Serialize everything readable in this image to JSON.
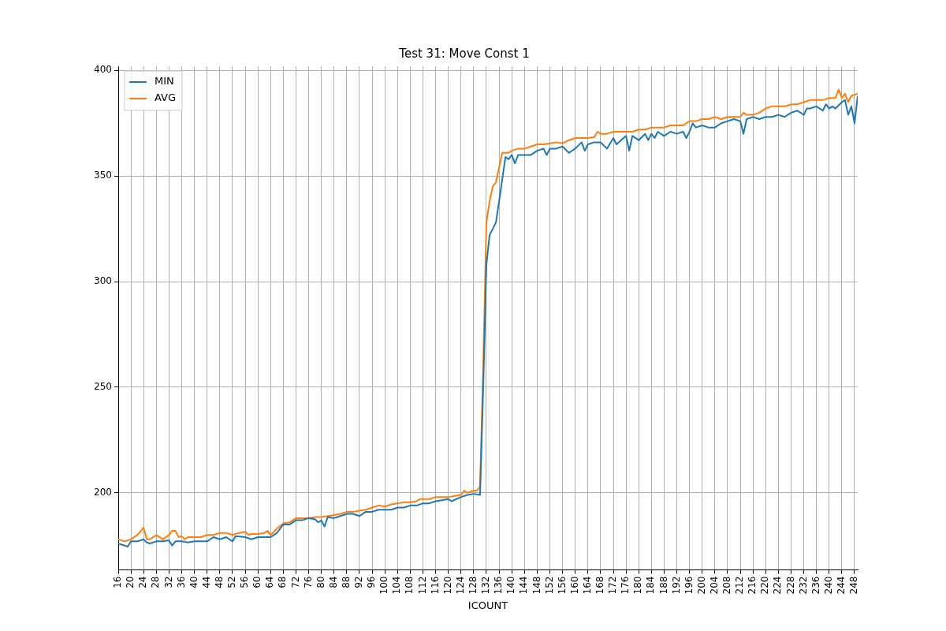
{
  "chart_data": {
    "type": "line",
    "title": "Test 31: Move Const 1",
    "xlabel": "ICOUNT",
    "xlim": [
      16,
      249
    ],
    "ylim": [
      163.5,
      402
    ],
    "xticks": [
      16,
      20,
      24,
      28,
      32,
      36,
      40,
      44,
      48,
      52,
      56,
      60,
      64,
      68,
      72,
      76,
      80,
      84,
      88,
      92,
      96,
      100,
      104,
      108,
      112,
      116,
      120,
      124,
      128,
      132,
      136,
      140,
      144,
      148,
      152,
      156,
      160,
      164,
      168,
      172,
      176,
      180,
      184,
      188,
      192,
      196,
      200,
      204,
      208,
      212,
      216,
      220,
      224,
      228,
      232,
      236,
      240,
      244,
      248
    ],
    "yticks": [
      200,
      250,
      300,
      350,
      400
    ],
    "grid": true,
    "legend": "top left",
    "marker": "none",
    "line_style": "solid",
    "series": [
      {
        "name": "MIN",
        "color": "#1f77b4",
        "x": [
          16,
          18,
          19,
          20,
          22,
          24,
          25,
          26,
          28,
          30,
          32,
          33,
          34,
          36,
          38,
          40,
          42,
          44,
          46,
          48,
          50,
          52,
          53,
          56,
          58,
          60,
          62,
          64,
          66,
          68,
          70,
          72,
          74,
          76,
          78,
          79,
          80,
          81,
          82,
          84,
          86,
          88,
          90,
          92,
          94,
          96,
          98,
          100,
          102,
          104,
          106,
          108,
          110,
          112,
          114,
          116,
          118,
          120,
          121,
          124,
          126,
          128,
          130,
          131,
          132,
          133,
          135,
          136,
          138,
          139,
          140,
          141,
          142,
          144,
          146,
          148,
          150,
          151,
          152,
          154,
          156,
          158,
          160,
          162,
          163,
          164,
          166,
          168,
          170,
          172,
          173,
          176,
          177,
          178,
          180,
          182,
          183,
          184,
          185,
          186,
          188,
          190,
          192,
          194,
          195,
          196,
          197,
          198,
          200,
          202,
          204,
          206,
          208,
          210,
          212,
          213,
          214,
          216,
          218,
          220,
          222,
          224,
          226,
          228,
          230,
          232,
          233,
          234,
          236,
          238,
          239,
          240,
          241,
          242,
          244,
          245,
          246,
          247,
          248,
          249
        ],
        "values": [
          176,
          175,
          174.5,
          177,
          177,
          178,
          176.5,
          176,
          177,
          177,
          177.5,
          175,
          177,
          177,
          176.5,
          177,
          177,
          177,
          179,
          178,
          179,
          177,
          179.5,
          179,
          178,
          179,
          179,
          179,
          181,
          185,
          185,
          187,
          187,
          188,
          187.5,
          186,
          187,
          184,
          188.5,
          188,
          189,
          190,
          190,
          189,
          191,
          191,
          192,
          192,
          192,
          193,
          193,
          194,
          194,
          195,
          195,
          196,
          196.5,
          197,
          196,
          198,
          199,
          199.5,
          199,
          250,
          308,
          322,
          328,
          338,
          359,
          358,
          360,
          356,
          360,
          360,
          360,
          362,
          363,
          360,
          363,
          363,
          364,
          361,
          363,
          366,
          362,
          365,
          366,
          366,
          363,
          368,
          365,
          369,
          362,
          369,
          367,
          370,
          367,
          370,
          368,
          371,
          369,
          371,
          370,
          371,
          368,
          371,
          375,
          373,
          374,
          373,
          373,
          375,
          376,
          377,
          376,
          370,
          377,
          378,
          377,
          378,
          378,
          379,
          378,
          380,
          381,
          379,
          382,
          382,
          383,
          381,
          384,
          382,
          383,
          382,
          385,
          386,
          379,
          383,
          375,
          388
        ]
      },
      {
        "name": "AVG",
        "color": "#ff7f0e",
        "x": [
          16,
          18,
          20,
          22,
          24,
          25,
          26,
          28,
          30,
          32,
          33,
          34,
          35,
          36,
          37,
          38,
          40,
          42,
          44,
          46,
          48,
          50,
          52,
          54,
          56,
          57,
          58,
          60,
          62,
          63,
          64,
          66,
          68,
          70,
          72,
          74,
          76,
          78,
          80,
          82,
          84,
          86,
          88,
          90,
          92,
          94,
          96,
          98,
          100,
          102,
          104,
          106,
          108,
          110,
          111,
          112,
          114,
          116,
          118,
          120,
          122,
          124,
          125,
          126,
          128,
          129,
          130,
          131,
          132,
          133,
          134,
          135,
          136,
          137,
          138,
          139,
          140,
          142,
          144,
          146,
          148,
          150,
          152,
          154,
          156,
          158,
          160,
          162,
          164,
          166,
          167,
          168,
          170,
          172,
          174,
          176,
          178,
          180,
          182,
          184,
          186,
          188,
          190,
          192,
          194,
          196,
          198,
          200,
          202,
          204,
          206,
          208,
          210,
          212,
          213,
          214,
          216,
          218,
          220,
          222,
          224,
          226,
          228,
          230,
          232,
          234,
          236,
          238,
          240,
          242,
          243,
          244,
          245,
          246,
          247,
          248,
          249
        ],
        "values": [
          178,
          177,
          178,
          180,
          183.5,
          178,
          178,
          180,
          178,
          180,
          182,
          182,
          179,
          179.5,
          178,
          179,
          179,
          179,
          180,
          180,
          181,
          181,
          180,
          181,
          181.5,
          180,
          180.5,
          180.5,
          181,
          182,
          180,
          183,
          185.5,
          186,
          188,
          188,
          188,
          188.5,
          188.5,
          189,
          189.5,
          190,
          191,
          191,
          191.5,
          192,
          193,
          194,
          193.5,
          194.5,
          195,
          195.5,
          195.5,
          196,
          197,
          197,
          197,
          198,
          198,
          198,
          198.5,
          199,
          201,
          200,
          201,
          201,
          203,
          260,
          328,
          338,
          345,
          347,
          354,
          361,
          361,
          361,
          362,
          363,
          363,
          364,
          365,
          365,
          365.5,
          366,
          365.5,
          367,
          368,
          368,
          368,
          368.5,
          371,
          370,
          370,
          371,
          371,
          371,
          371,
          372,
          372,
          373,
          373,
          373,
          374,
          374,
          374,
          376,
          376,
          377,
          377,
          378,
          377,
          378,
          378,
          378,
          380,
          379,
          379,
          380,
          382,
          383,
          383,
          383,
          384,
          384,
          385,
          386,
          386,
          386,
          387,
          387,
          391,
          387,
          389,
          385,
          388,
          388.5,
          389
        ]
      }
    ]
  }
}
